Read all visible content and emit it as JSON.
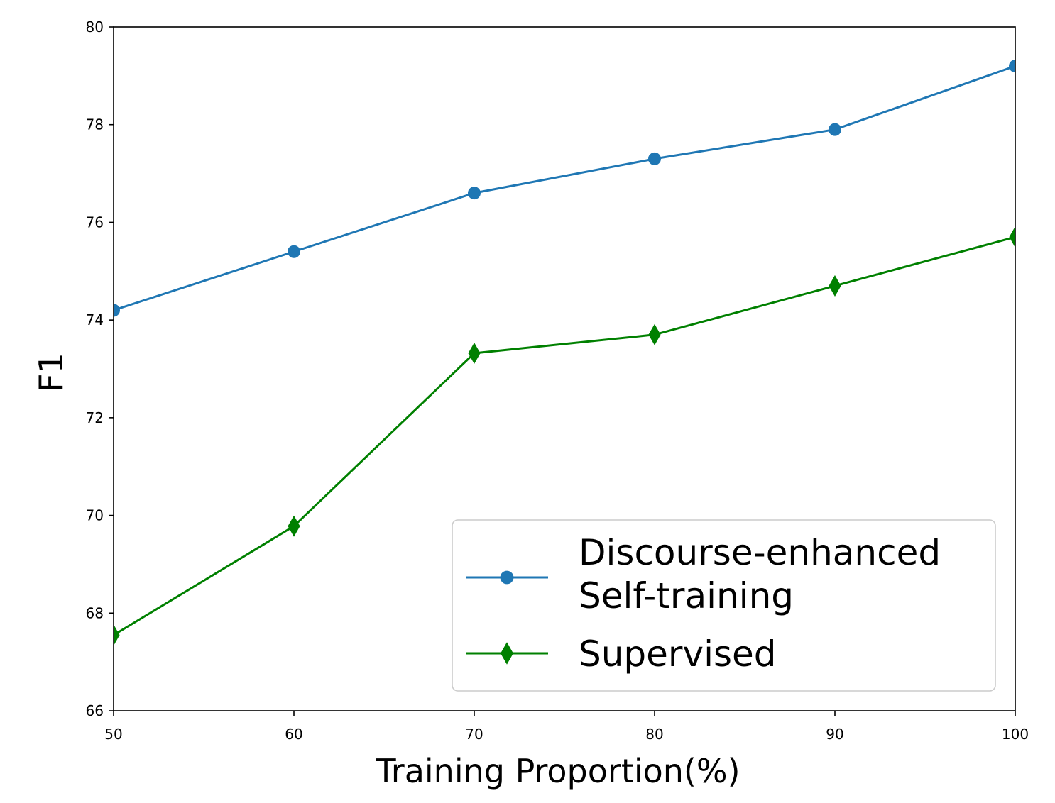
{
  "chart_data": {
    "type": "line",
    "title": "",
    "xlabel": "Training Proportion(%)",
    "ylabel": "F1",
    "x": [
      50,
      60,
      70,
      80,
      90,
      100
    ],
    "xlim": [
      50,
      100
    ],
    "ylim": [
      66,
      80
    ],
    "xticks": [
      50,
      60,
      70,
      80,
      90,
      100
    ],
    "yticks": [
      66,
      68,
      70,
      72,
      74,
      76,
      78,
      80
    ],
    "grid": false,
    "legend_position": "lower right",
    "series": [
      {
        "name_lines": [
          "Discourse-enhanced",
          "Self-training"
        ],
        "values": [
          74.2,
          75.4,
          76.6,
          77.3,
          77.9,
          79.2
        ],
        "color": "#1f77b4",
        "marker": "circle"
      },
      {
        "name_lines": [
          "Supervised"
        ],
        "values": [
          67.55,
          69.78,
          73.32,
          73.7,
          74.7,
          75.7
        ],
        "color": "#008000",
        "marker": "thin-diamond"
      }
    ]
  }
}
